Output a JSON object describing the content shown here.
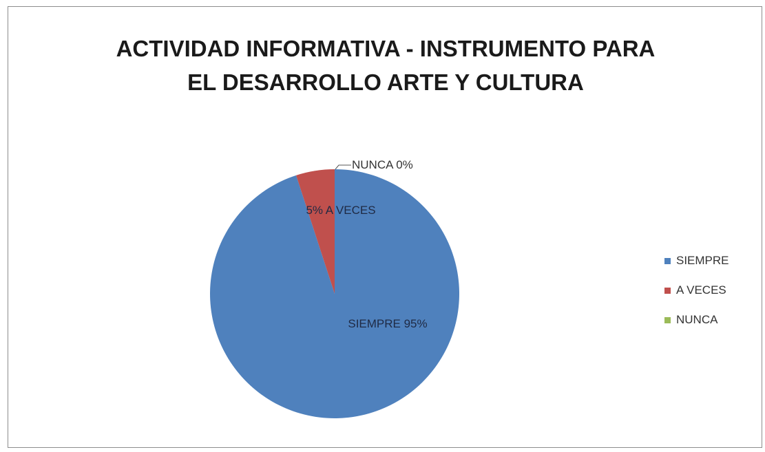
{
  "chart_data": {
    "type": "pie",
    "title_lines": [
      "ACTIVIDAD INFORMATIVA - INSTRUMENTO PARA",
      "EL DESARROLLO  ARTE Y CULTURA"
    ],
    "categories": [
      "SIEMPRE",
      "A VECES",
      "NUNCA"
    ],
    "values": [
      95,
      5,
      0
    ],
    "colors": [
      "#4f81bd",
      "#c0504d",
      "#9bbb59"
    ],
    "data_labels": [
      "SIEMPRE 95%",
      "5% A VECES",
      "NUNCA 0%"
    ],
    "legend": {
      "placement": "right",
      "entries": [
        "SIEMPRE",
        "A VECES",
        "NUNCA"
      ]
    }
  }
}
